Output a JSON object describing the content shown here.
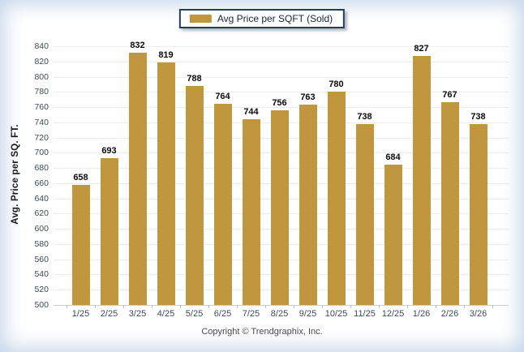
{
  "page": {
    "footer": "Copyright © Trendgraphix, Inc."
  },
  "legend": {
    "label": "Avg Price per SQFT (Sold)"
  },
  "colors": {
    "bar": "#C0973F",
    "legend_border": "#243C63",
    "gridline": "#ECECEC",
    "axis_text": "#3F4A57",
    "value_label": "#0B0B0B"
  },
  "chart_data": {
    "type": "bar",
    "categories": [
      "1/25",
      "2/25",
      "3/25",
      "4/25",
      "5/25",
      "6/25",
      "7/25",
      "8/25",
      "9/25",
      "10/25",
      "11/25",
      "12/25",
      "1/26",
      "2/26",
      "3/26"
    ],
    "values": [
      658,
      693,
      832,
      819,
      788,
      764,
      744,
      756,
      763,
      780,
      738,
      684,
      827,
      767,
      738
    ],
    "title": "",
    "xlabel": "",
    "ylabel": "Avg. Price per SQ. FT.",
    "ylim": [
      500,
      840
    ],
    "ytick_step": 20,
    "grid": true,
    "legend_position": "top",
    "bar_color": "#C0973F",
    "value_labels": true
  }
}
